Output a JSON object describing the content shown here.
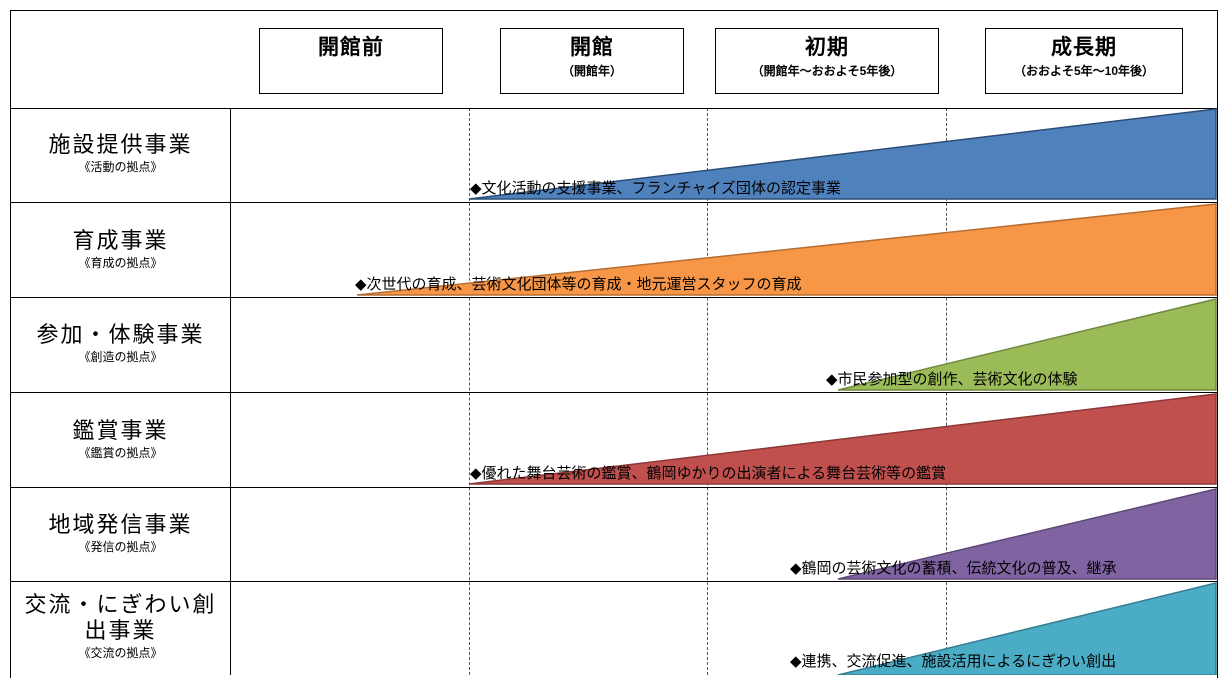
{
  "phases": [
    {
      "title": "開館前",
      "subtitle": ""
    },
    {
      "title": "開館",
      "subtitle": "（開館年）"
    },
    {
      "title": "初期",
      "subtitle": "（開館年～おおよそ5年後）"
    },
    {
      "title": "成長期",
      "subtitle": "（おおよそ5年～10年後）"
    }
  ],
  "rows": [
    {
      "name": "施設提供事業",
      "hub": "《活動の拠点》",
      "activity": "◆文化活動の支援事業、フランチャイズ団体の認定事業",
      "color": "#4F81BD"
    },
    {
      "name": "育成事業",
      "hub": "《育成の拠点》",
      "activity": "◆次世代の育成、芸術文化団体等の育成・地元運営スタッフの育成",
      "color": "#F79646"
    },
    {
      "name": "参加・体験事業",
      "hub": "《創造の拠点》",
      "activity": "◆市民参加型の創作、芸術文化の体験",
      "color": "#9BBB59"
    },
    {
      "name": "鑑賞事業",
      "hub": "《鑑賞の拠点》",
      "activity": "◆優れた舞台芸術の鑑賞、鶴岡ゆかりの出演者による舞台芸術等の鑑賞",
      "color": "#C0504D"
    },
    {
      "name": "地域発信事業",
      "hub": "《発信の拠点》",
      "activity": "◆鶴岡の芸術文化の蓄積、伝統文化の普及、継承",
      "color": "#8064A2"
    },
    {
      "name_line1": "交流・にぎわい創",
      "name_line2": "出事業",
      "hub": "《交流の拠点》",
      "activity": "◆連携、交流促進、施設活用によるにぎわい創出",
      "color": "#4BACC6"
    }
  ]
}
